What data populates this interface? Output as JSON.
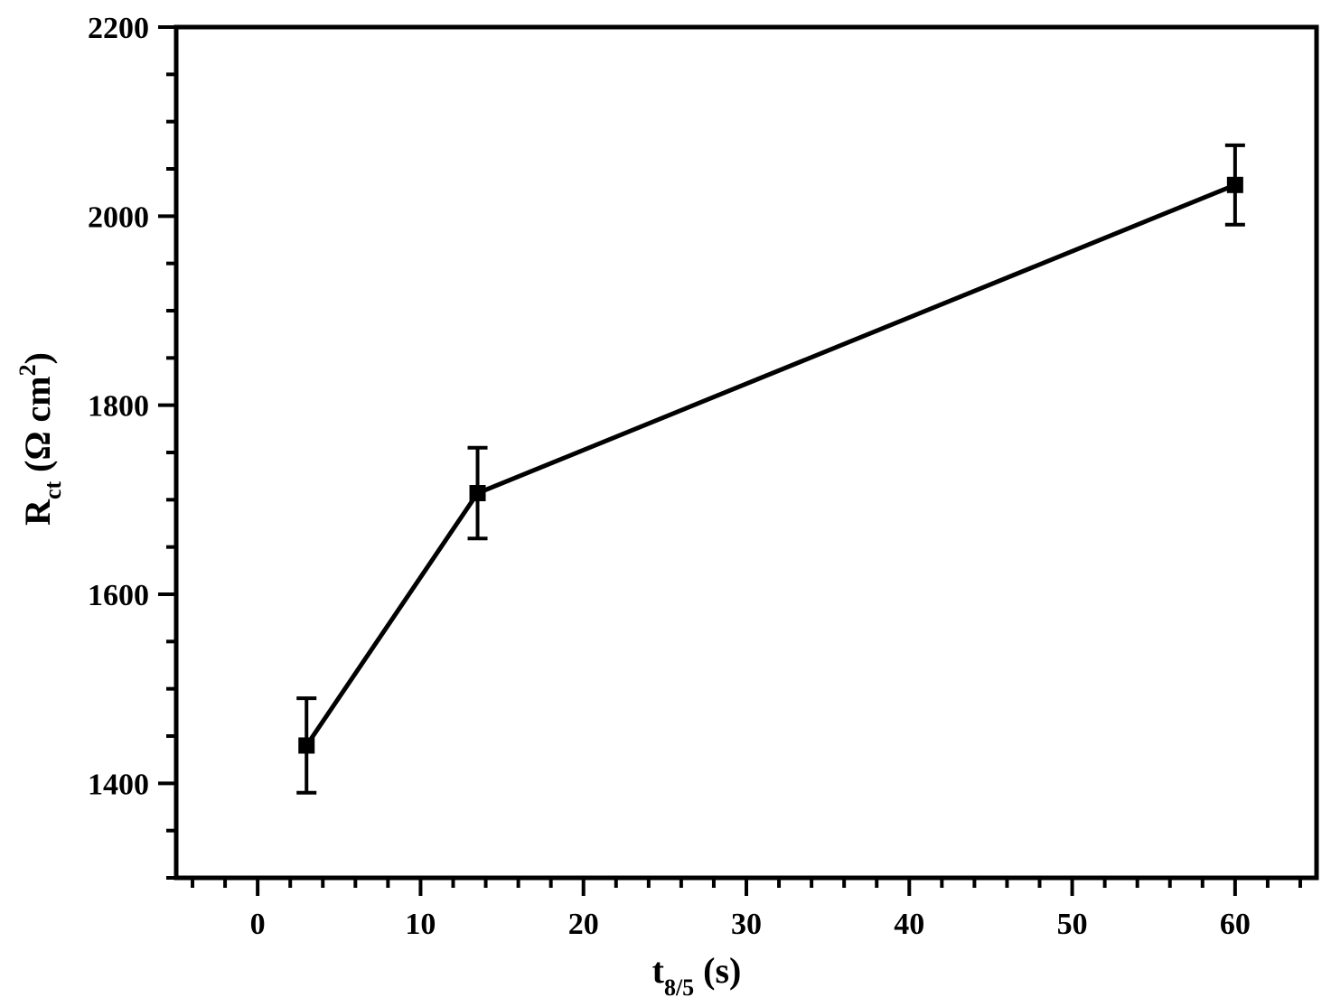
{
  "chart_data": {
    "type": "line",
    "title": "",
    "xlabel": {
      "main": "t",
      "sub": "8/5",
      "unit": " (s)"
    },
    "ylabel": {
      "main": "R",
      "sub": "ct",
      "unit_open": " (Ω cm",
      "unit_sup": "2",
      "unit_close": ")"
    },
    "xlim": [
      -5,
      65
    ],
    "ylim": [
      1300,
      2200
    ],
    "xticks": [
      0,
      10,
      20,
      30,
      40,
      50,
      60
    ],
    "yticks": [
      1400,
      1600,
      1800,
      2000,
      2200
    ],
    "x_minor_step": 2,
    "y_minor_step": 50,
    "grid": false,
    "legend": "none",
    "series": [
      {
        "marker": "square",
        "color": "#000000",
        "points": [
          {
            "x": 3,
            "y": 1440,
            "err": 50
          },
          {
            "x": 13.5,
            "y": 1707,
            "err": 48
          },
          {
            "x": 60,
            "y": 2033,
            "err": 42
          }
        ]
      }
    ]
  }
}
